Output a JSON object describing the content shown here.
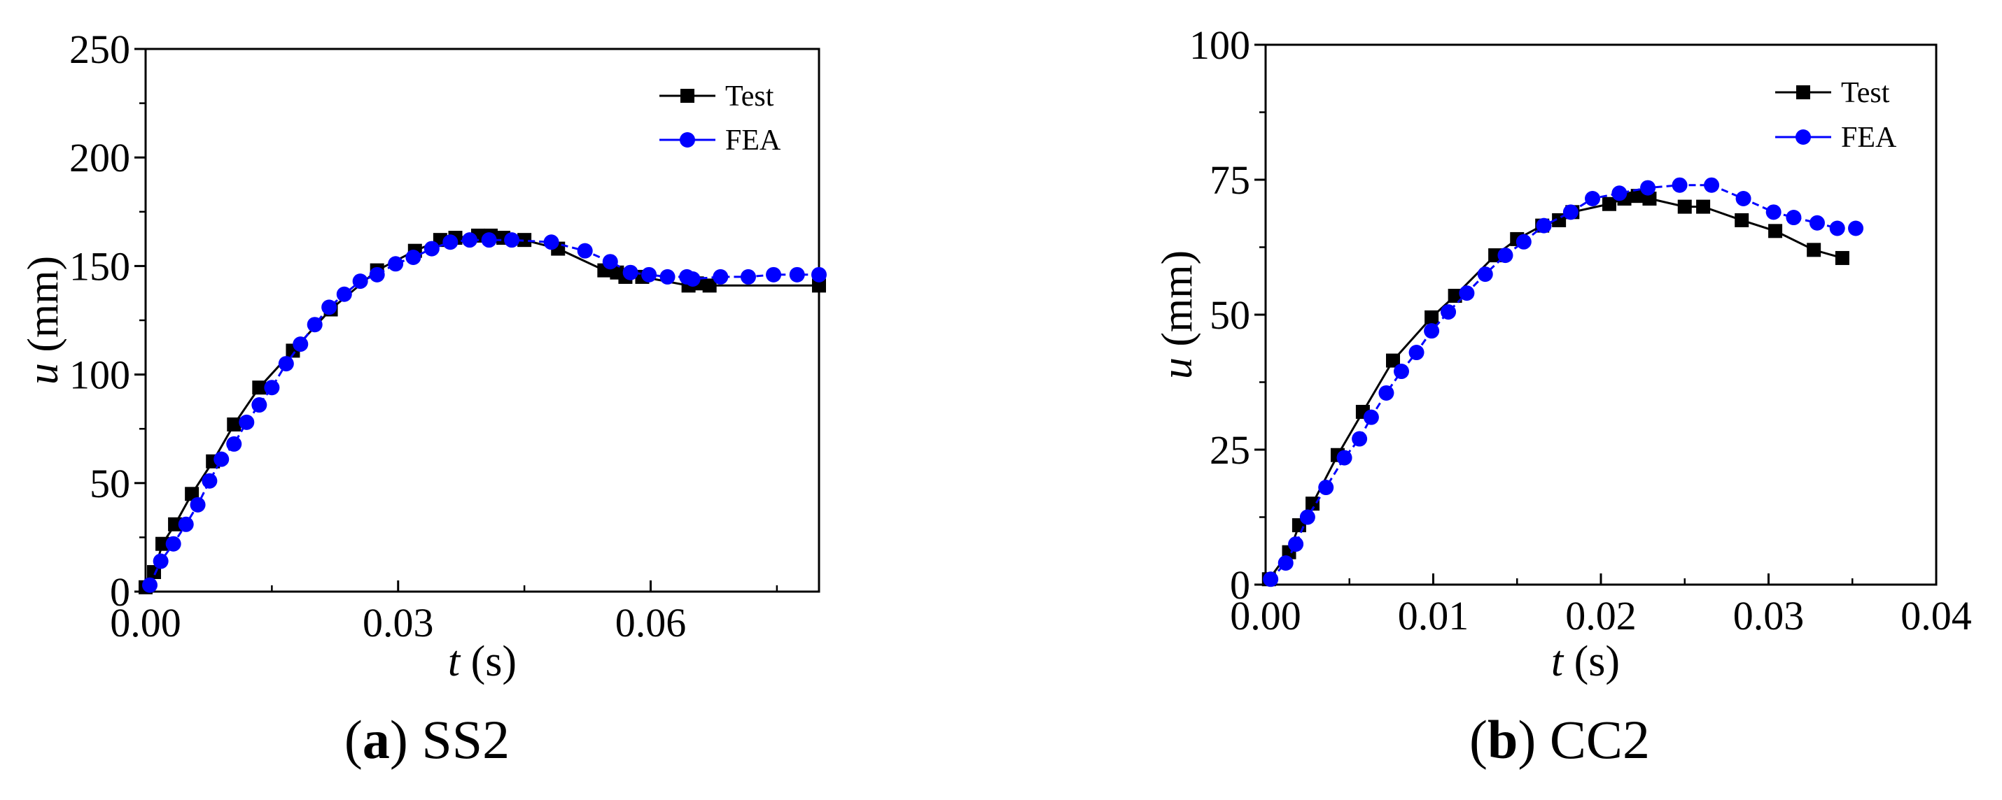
{
  "chart_data": [
    {
      "type": "line",
      "id": "a",
      "caption_letter": "a",
      "caption_name": "SS2",
      "xlabel_var": "t",
      "xlabel_unit": " (s)",
      "ylabel_var": "u",
      "ylabel_unit": " (mm)",
      "xlim": [
        0,
        0.08
      ],
      "ylim": [
        0,
        250
      ],
      "xticks": [
        0,
        0.03,
        0.06
      ],
      "xtick_labels": [
        "0.00",
        "0.03",
        "0.06"
      ],
      "xminor": [
        0.015,
        0.045,
        0.075
      ],
      "yticks": [
        0,
        50,
        100,
        150,
        200,
        250
      ],
      "ytick_labels": [
        "0",
        "50",
        "100",
        "150",
        "200",
        "250"
      ],
      "yminor": [
        25,
        75,
        125,
        175,
        225
      ],
      "legend_position": "top-right",
      "series": [
        {
          "name": "Test",
          "color": "#000000",
          "marker": "square",
          "dash": "",
          "x": [
            0.0,
            0.001,
            0.002,
            0.0035,
            0.0055,
            0.008,
            0.0105,
            0.0135,
            0.0175,
            0.022,
            0.0275,
            0.032,
            0.035,
            0.0368,
            0.0395,
            0.041,
            0.0425,
            0.045,
            0.049,
            0.0545,
            0.056,
            0.057,
            0.059,
            0.0645,
            0.0655,
            0.067,
            0.08
          ],
          "y": [
            2,
            9,
            22,
            31,
            45,
            60,
            77,
            94,
            111,
            130,
            148,
            157,
            162,
            163,
            164,
            164,
            163,
            162,
            158,
            148,
            147,
            145,
            145,
            141,
            142,
            141,
            141
          ]
        },
        {
          "name": "FEA",
          "color": "#0000ff",
          "marker": "circle",
          "dash": "10,6",
          "x": [
            0.0005,
            0.0018,
            0.0033,
            0.0048,
            0.0062,
            0.0076,
            0.009,
            0.0105,
            0.012,
            0.0135,
            0.015,
            0.0167,
            0.0184,
            0.0201,
            0.0218,
            0.0236,
            0.0255,
            0.0275,
            0.0297,
            0.0318,
            0.034,
            0.0362,
            0.0385,
            0.0408,
            0.0435,
            0.0482,
            0.0522,
            0.0552,
            0.0576,
            0.0598,
            0.062,
            0.0643,
            0.065,
            0.0683,
            0.0716,
            0.0746,
            0.0774,
            0.08
          ],
          "y": [
            3,
            14,
            22,
            31,
            40,
            51,
            61,
            68,
            78,
            86,
            94,
            105,
            114,
            123,
            131,
            137,
            143,
            146,
            151,
            154,
            158,
            161,
            162,
            162,
            162,
            161,
            157,
            152,
            147,
            146,
            145,
            145,
            144,
            145,
            145,
            146,
            146,
            146
          ]
        }
      ]
    },
    {
      "type": "line",
      "id": "b",
      "caption_letter": "b",
      "caption_name": "CC2",
      "xlabel_var": "t",
      "xlabel_unit": " (s)",
      "ylabel_var": "u",
      "ylabel_unit": " (mm)",
      "xlim": [
        0,
        0.04
      ],
      "ylim": [
        0,
        100
      ],
      "xticks": [
        0,
        0.01,
        0.02,
        0.03,
        0.04
      ],
      "xtick_labels": [
        "0.00",
        "0.01",
        "0.02",
        "0.03",
        "0.04"
      ],
      "xminor": [
        0.005,
        0.015,
        0.025,
        0.035
      ],
      "yticks": [
        0,
        25,
        50,
        75,
        100
      ],
      "ytick_labels": [
        "0",
        "25",
        "50",
        "75",
        "100"
      ],
      "yminor": [
        12.5,
        37.5,
        62.5,
        87.5
      ],
      "legend_position": "top-right",
      "series": [
        {
          "name": "Test",
          "color": "#000000",
          "marker": "square",
          "dash": "",
          "x": [
            0.0002,
            0.0014,
            0.002,
            0.0028,
            0.0043,
            0.0058,
            0.0076,
            0.0099,
            0.0113,
            0.0137,
            0.015,
            0.0165,
            0.0175,
            0.0183,
            0.0205,
            0.0214,
            0.0222,
            0.0229,
            0.025,
            0.0261,
            0.0284,
            0.0304,
            0.0327,
            0.0344
          ],
          "y": [
            1,
            6,
            11,
            15,
            24,
            32,
            41.5,
            49.5,
            53.5,
            61,
            64,
            66.5,
            67.5,
            69,
            70.5,
            71.5,
            72,
            71.5,
            70,
            70,
            67.5,
            65.5,
            62,
            60.5
          ]
        },
        {
          "name": "FEA",
          "color": "#0000ff",
          "marker": "circle",
          "dash": "10,6",
          "x": [
            0.0003,
            0.0012,
            0.0018,
            0.0025,
            0.0036,
            0.0047,
            0.0056,
            0.0063,
            0.0072,
            0.0081,
            0.009,
            0.0099,
            0.0109,
            0.012,
            0.0131,
            0.0143,
            0.0154,
            0.0166,
            0.0182,
            0.0195,
            0.0211,
            0.0228,
            0.0247,
            0.0266,
            0.0285,
            0.0303,
            0.0315,
            0.0329,
            0.0341,
            0.0352
          ],
          "y": [
            1,
            4,
            7.5,
            12.5,
            18,
            23.5,
            27,
            31,
            35.5,
            39.5,
            43,
            47,
            50.5,
            54,
            57.5,
            61,
            63.5,
            66.5,
            69,
            71.5,
            72.5,
            73.5,
            74,
            74,
            71.5,
            69,
            68,
            67,
            66,
            66
          ]
        }
      ]
    }
  ]
}
